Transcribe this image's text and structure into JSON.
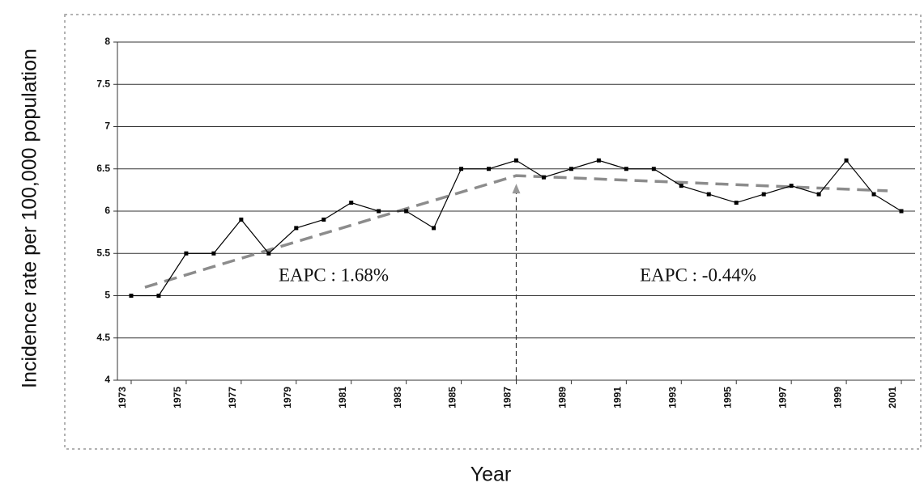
{
  "chart_data": {
    "type": "line",
    "x_label": "Year",
    "y_label": "Incidence rate per 100,000 population",
    "x": [
      1973,
      1974,
      1975,
      1976,
      1977,
      1978,
      1979,
      1980,
      1981,
      1982,
      1983,
      1984,
      1985,
      1986,
      1987,
      1988,
      1989,
      1990,
      1991,
      1992,
      1993,
      1994,
      1995,
      1996,
      1997,
      1998,
      1999,
      2000,
      2001
    ],
    "series": [
      {
        "color": "#000000",
        "values": [
          5.0,
          5.0,
          5.5,
          5.5,
          5.9,
          5.5,
          5.8,
          5.9,
          6.1,
          6.0,
          6.0,
          5.8,
          6.5,
          6.5,
          6.6,
          6.4,
          6.5,
          6.6,
          6.5,
          6.5,
          6.3,
          6.2,
          6.1,
          6.2,
          6.3,
          6.2,
          6.6,
          6.2,
          6.0
        ]
      }
    ],
    "trend": {
      "color": "#8c8c8c",
      "x": [
        1973.5,
        1987,
        2000.5
      ],
      "values": [
        5.1,
        6.42,
        6.24
      ]
    },
    "breakpoint": 1987,
    "annotations": [
      "EAPC : 1.68%",
      "EAPC : -0.44%"
    ],
    "xlim": [
      1972.5,
      2001.5
    ],
    "xticks": [
      1973,
      1975,
      1977,
      1979,
      1981,
      1983,
      1985,
      1987,
      1989,
      1991,
      1993,
      1995,
      1997,
      1999,
      2001
    ],
    "ylim": [
      4,
      8
    ],
    "yticks": [
      4,
      4.5,
      5,
      5.5,
      6,
      6.5,
      7,
      7.5,
      8
    ],
    "grid": true
  }
}
